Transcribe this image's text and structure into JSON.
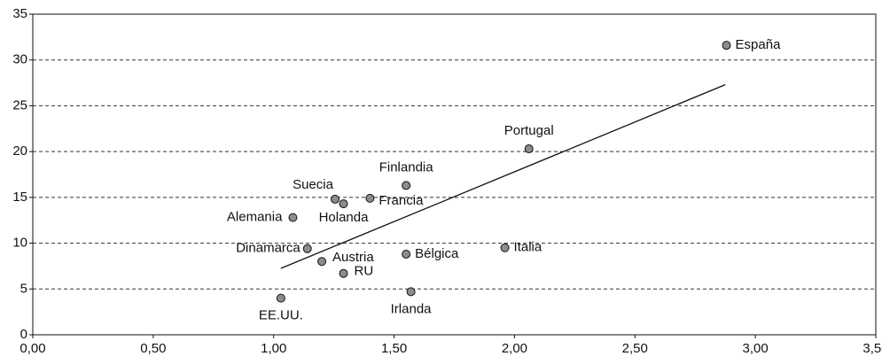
{
  "chart_data": {
    "type": "scatter",
    "x": [
      2.88,
      2.06,
      1.55,
      1.4,
      1.255,
      1.29,
      1.08,
      1.14,
      1.2,
      1.29,
      1.55,
      1.96,
      1.57,
      1.03
    ],
    "y": [
      31.6,
      20.3,
      16.3,
      14.9,
      14.8,
      14.3,
      12.8,
      9.4,
      8.0,
      6.7,
      8.8,
      9.5,
      4.7,
      4.0
    ],
    "point_labels": [
      "España",
      "Portugal",
      "Finlandia",
      "Francia",
      "Suecia",
      "Holanda",
      "Alemania",
      "Dinamarca",
      "Austria",
      "RU",
      "Bélgica",
      "Italia",
      "Irlanda",
      "EE.UU."
    ],
    "color": "#8c8c8c",
    "trendline": {
      "x": [
        1.03,
        2.875
      ],
      "y": [
        7.25,
        27.3
      ]
    },
    "xlim": [
      0,
      3.5
    ],
    "xticks": [
      {
        "value": 0,
        "label": "0,00"
      },
      {
        "value": 0.5,
        "label": "0,50"
      },
      {
        "value": 1,
        "label": "1,00"
      },
      {
        "value": 1.5,
        "label": "1,50"
      },
      {
        "value": 2,
        "label": "2,00"
      },
      {
        "value": 2.5,
        "label": "2,50"
      },
      {
        "value": 3,
        "label": "3,00"
      },
      {
        "value": 3.5,
        "label": "3,50"
      }
    ],
    "ylim": [
      0,
      35
    ],
    "yticks": [
      0,
      5,
      10,
      15,
      20,
      25,
      30,
      35
    ],
    "grid": true
  }
}
